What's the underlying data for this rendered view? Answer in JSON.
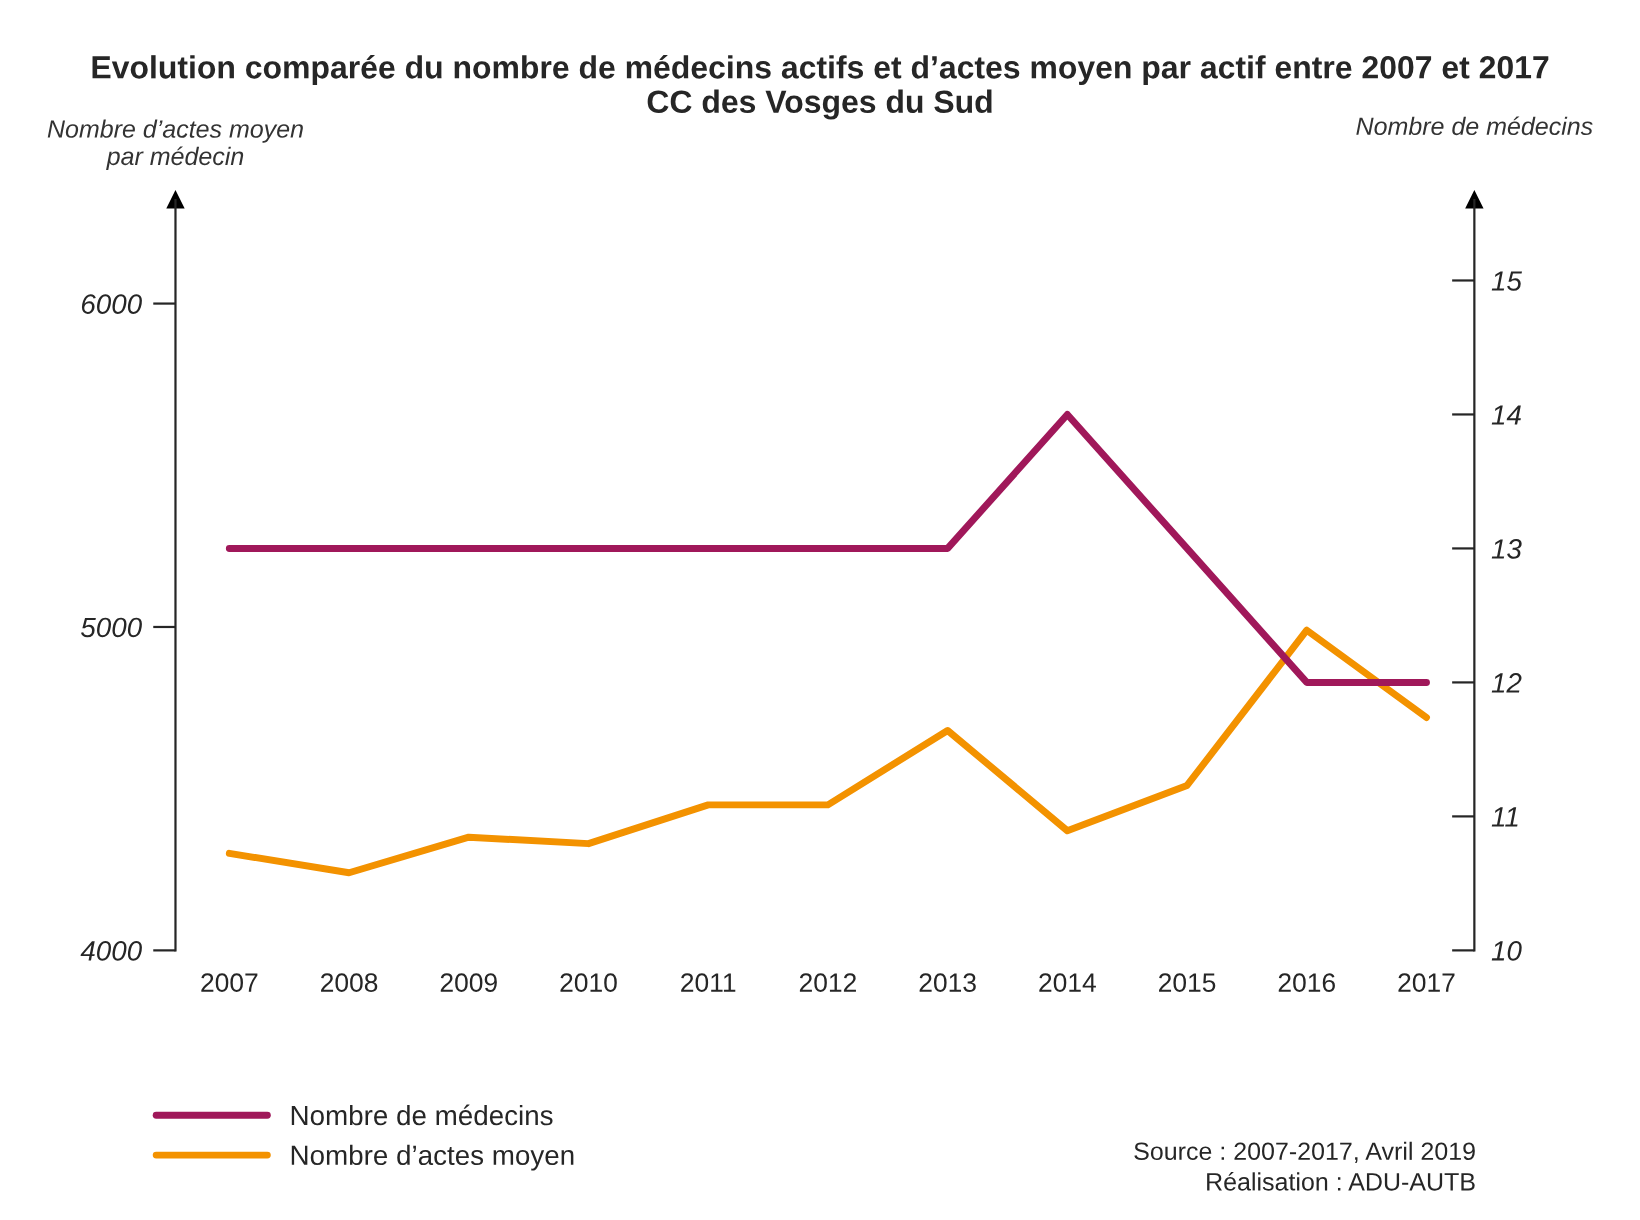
{
  "chart_data": {
    "type": "line",
    "title": "Evolution comparée du nombre de médecins actifs et d’actes moyen par actif entre 2007 et 2017\nCC des Vosges du Sud",
    "ylabel": "Nombre d’actes moyen\npar médecin",
    "y2label": "Nombre de médecins",
    "categories": [
      "2007",
      "2008",
      "2009",
      "2010",
      "2011",
      "2012",
      "2013",
      "2014",
      "2015",
      "2016",
      "2017"
    ],
    "series": [
      {
        "name": "Nombre de médecins",
        "color": "#a0185a",
        "axis": "y2",
        "values": [
          13,
          13,
          13,
          13,
          13,
          13,
          13,
          14,
          13,
          12,
          12
        ]
      },
      {
        "name": "Nombre d’actes moyen",
        "color": "#f39200",
        "values": [
          4300,
          4240,
          4350,
          4330,
          4450,
          4450,
          4680,
          4370,
          4510,
          4990,
          4720
        ]
      }
    ],
    "ylim": [
      4000,
      6320
    ],
    "yticks": [
      4000,
      5000,
      6000
    ],
    "y2lim": [
      10,
      15.6
    ],
    "y2ticks": [
      10,
      11,
      12,
      13,
      14,
      15
    ],
    "grid": false,
    "legend": "bottom left",
    "marker": "none",
    "line_style": "solid",
    "annotations": [
      "Source : 2007-2017, Avril 2019\nRéalisation : ADU-AUTB"
    ]
  }
}
